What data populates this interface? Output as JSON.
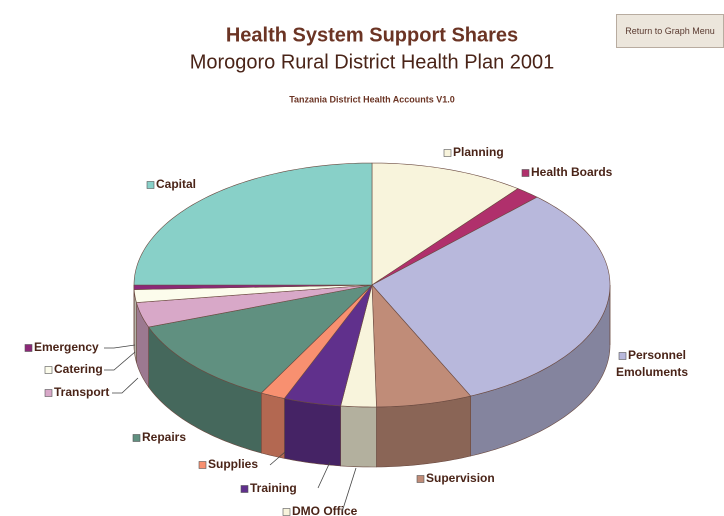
{
  "button": "Return to Graph Menu",
  "chart_data": {
    "type": "pie3d",
    "title": "Health System Support Shares",
    "subtitle": "Morogoro Rural District Health Plan 2001",
    "source": "Tanzania District Health Accounts V1.0",
    "categories": [
      "Planning",
      "Health Boards",
      "Personnel Emoluments",
      "Supervision",
      "DMO Office",
      "Training",
      "Supplies",
      "Repairs",
      "Transport",
      "Catering",
      "Emergency",
      "Capital"
    ],
    "values": [
      10.5,
      1.7,
      31,
      6.5,
      2.4,
      3.9,
      1.7,
      11.7,
      3.3,
      1.7,
      0.6,
      25
    ],
    "colors": [
      "#f8f4dc",
      "#b0306c",
      "#b8b8dc",
      "#c08c78",
      "#f8f4dc",
      "#60308c",
      "#f89070",
      "#609080",
      "#d8a8c8",
      "#fcfcec",
      "#8c2878",
      "#88d0c8"
    ]
  }
}
